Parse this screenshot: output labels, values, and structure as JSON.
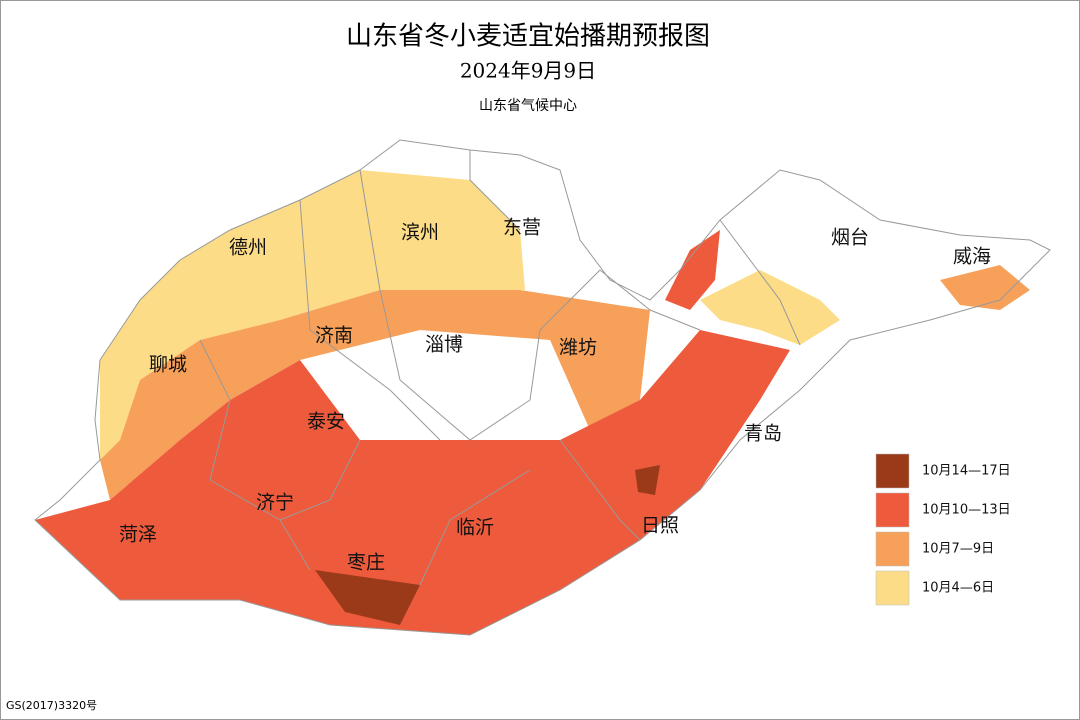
{
  "header": {
    "title": "山东省冬小麦适宜始播期预报图",
    "date": "2024年9月9日",
    "agency": "山东省气候中心"
  },
  "cities": [
    "德州",
    "滨州",
    "东营",
    "烟台",
    "威海",
    "聊城",
    "济南",
    "淄博",
    "潍坊",
    "泰安",
    "青岛",
    "济宁",
    "菏泽",
    "临沂",
    "日照",
    "枣庄"
  ],
  "legend": [
    {
      "label": "10月14—17日",
      "color": "#9a3a19"
    },
    {
      "label": "10月10—13日",
      "color": "#ee5a3c"
    },
    {
      "label": "10月7—9日",
      "color": "#f7a05a"
    },
    {
      "label": "10月4—6日",
      "color": "#fddc88"
    }
  ],
  "footer": {
    "map_number": "GS(2017)3320号"
  }
}
